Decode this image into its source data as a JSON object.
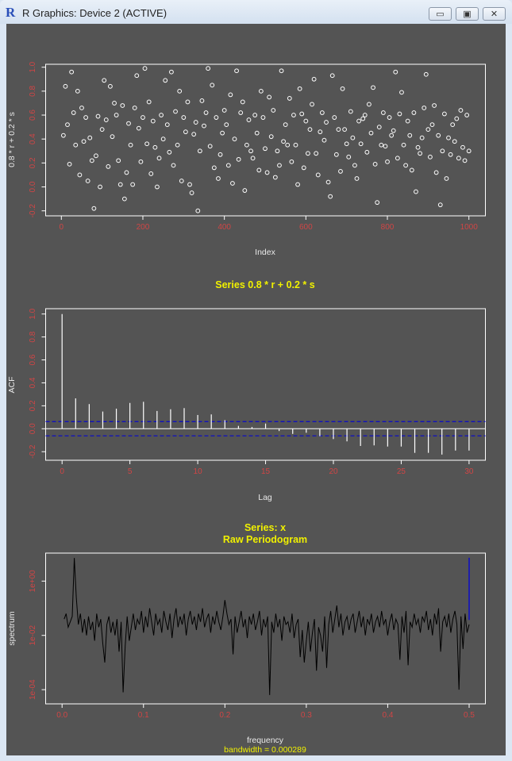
{
  "window": {
    "title": "R Graphics: Device 2 (ACTIVE)",
    "app_icon": "R",
    "minimize": "▭",
    "maximize": "▣",
    "close": "✕"
  },
  "colors": {
    "background": "#545454",
    "tick_labels": "#d04545",
    "titles": "#f0f000",
    "points": "#ffffff",
    "ci_lines": "#1010c0"
  },
  "chart_data": [
    {
      "type": "scatter",
      "title": "",
      "xlabel": "Index",
      "ylabel": "0.8 * r + 0.2 * s",
      "xlim": [
        0,
        1000
      ],
      "ylim": [
        -0.2,
        1.0
      ],
      "xticks": [
        "0",
        "200",
        "400",
        "600",
        "800",
        "1000"
      ],
      "yticks": [
        "-0.2",
        "0.0",
        "0.2",
        "0.4",
        "0.6",
        "0.8",
        "1.0"
      ],
      "x_step": 5,
      "y": [
        0.43,
        0.84,
        0.52,
        0.19,
        0.96,
        0.62,
        0.35,
        0.8,
        0.1,
        0.66,
        0.38,
        0.58,
        0.05,
        0.41,
        0.22,
        -0.18,
        0.26,
        0.59,
        0.0,
        0.48,
        0.89,
        0.56,
        0.17,
        0.84,
        0.42,
        0.7,
        0.6,
        0.22,
        0.02,
        0.68,
        -0.1,
        0.12,
        0.53,
        0.35,
        0.02,
        0.66,
        0.93,
        0.49,
        0.21,
        0.58,
        0.99,
        0.36,
        0.71,
        0.11,
        0.55,
        0.33,
        0.0,
        0.24,
        0.6,
        0.4,
        0.89,
        0.52,
        0.29,
        0.96,
        0.18,
        0.63,
        0.35,
        0.8,
        0.05,
        0.58,
        0.46,
        0.71,
        0.02,
        -0.05,
        0.44,
        0.54,
        -0.2,
        0.3,
        0.72,
        0.51,
        0.62,
        0.99,
        0.34,
        0.85,
        0.16,
        0.58,
        0.07,
        0.27,
        0.45,
        0.64,
        0.52,
        0.18,
        0.77,
        0.03,
        0.4,
        0.97,
        0.23,
        0.62,
        0.71,
        -0.03,
        0.35,
        0.56,
        0.3,
        0.24,
        0.6,
        0.45,
        0.14,
        0.8,
        0.58,
        0.32,
        0.12,
        0.75,
        0.42,
        0.64,
        0.08,
        0.3,
        0.18,
        0.97,
        0.38,
        0.52,
        0.35,
        0.74,
        0.21,
        0.6,
        0.35,
        0.02,
        0.82,
        0.61,
        0.16,
        0.55,
        0.28,
        0.48,
        0.69,
        0.9,
        0.28,
        0.1,
        0.46,
        0.62,
        0.39,
        0.54,
        0.04,
        -0.08,
        0.93,
        0.58,
        0.27,
        0.48,
        0.13,
        0.82,
        0.48,
        0.36,
        0.25,
        0.63,
        0.41,
        0.18,
        0.07,
        0.55,
        0.36,
        0.57,
        0.6,
        0.29,
        0.69,
        0.45,
        0.83,
        0.19,
        -0.13,
        0.5,
        0.35,
        0.62,
        0.34,
        0.21,
        0.58,
        0.43,
        0.47,
        0.96,
        0.24,
        0.61,
        0.79,
        0.35,
        0.18,
        0.55,
        0.43,
        0.14,
        0.62,
        -0.04,
        0.33,
        0.28,
        0.41,
        0.66,
        0.94,
        0.48,
        0.25,
        0.52,
        0.68,
        0.12,
        0.43,
        -0.15,
        0.3,
        0.61,
        0.07,
        0.41,
        0.27,
        0.52,
        0.38,
        0.57,
        0.24,
        0.64,
        0.33,
        0.22,
        0.6,
        0.3
      ]
    },
    {
      "type": "bar",
      "title": "Series  0.8 * r + 0.2 * s",
      "xlabel": "Lag",
      "ylabel": "ACF",
      "xlim": [
        0,
        30
      ],
      "ylim": [
        -0.25,
        1.0
      ],
      "xticks": [
        "0",
        "5",
        "10",
        "15",
        "20",
        "25",
        "30"
      ],
      "yticks": [
        "-0.2",
        "0.0",
        "0.2",
        "0.4",
        "0.6",
        "0.8",
        "1.0"
      ],
      "lags": [
        0,
        1,
        2,
        3,
        4,
        5,
        6,
        7,
        8,
        9,
        10,
        11,
        12,
        13,
        14,
        15,
        16,
        17,
        18,
        19,
        20,
        21,
        22,
        23,
        24,
        25,
        26,
        27,
        28,
        29,
        30
      ],
      "values": [
        1.0,
        0.265,
        0.215,
        0.15,
        0.175,
        0.225,
        0.235,
        0.155,
        0.17,
        0.18,
        0.12,
        0.125,
        0.075,
        0.025,
        0.015,
        0.045,
        -0.02,
        -0.045,
        -0.035,
        -0.065,
        -0.09,
        -0.11,
        -0.15,
        -0.145,
        -0.155,
        -0.155,
        -0.21,
        -0.21,
        -0.225,
        -0.19,
        -0.19
      ],
      "confidence_bound": 0.062
    },
    {
      "type": "line",
      "title": "Series: x",
      "subtitle": "Raw Periodogram",
      "xlabel": "frequency",
      "ylabel": "spectrum",
      "note": "bandwidth = 0.000289",
      "xlim": [
        0,
        0.5
      ],
      "yscale": "log",
      "xticks": [
        "0.0",
        "0.1",
        "0.2",
        "0.3",
        "0.4",
        "0.5"
      ],
      "yticks": [
        "1e-04",
        "1e-02",
        "1e+00"
      ],
      "freq_step": 0.0025,
      "log10_spectrum": [
        -1.4,
        -1.2,
        -1.7,
        -1.5,
        -1.3,
        0.85,
        -0.6,
        -1.6,
        -1.2,
        -1.9,
        -1.4,
        -2.0,
        -1.3,
        -1.8,
        -1.5,
        -2.2,
        -1.2,
        -1.7,
        -1.4,
        -2.3,
        -3.0,
        -1.6,
        -1.3,
        -1.9,
        -1.5,
        -2.0,
        -1.4,
        -2.6,
        -1.5,
        -4.1,
        -2.4,
        -1.3,
        -2.2,
        -1.7,
        -1.2,
        -1.8,
        -1.4,
        -1.6,
        -1.1,
        -1.9,
        -1.3,
        -1.7,
        -1.0,
        -1.5,
        -2.0,
        -1.2,
        -1.6,
        -1.4,
        -1.9,
        -1.1,
        -1.5,
        -1.8,
        -1.2,
        -2.1,
        -1.4,
        -1.0,
        -1.7,
        -1.3,
        -1.6,
        -1.2,
        -2.0,
        -1.4,
        -1.1,
        -1.6,
        -1.3,
        -1.8,
        -1.2,
        -1.5,
        -1.0,
        -1.7,
        -1.4,
        -1.2,
        -1.9,
        -1.3,
        -1.6,
        -1.1,
        -1.5,
        -1.8,
        -1.3,
        -0.7,
        -1.2,
        -1.6,
        -1.4,
        -2.7,
        -1.3,
        -1.9,
        -1.5,
        -1.1,
        -1.7,
        -1.4,
        -2.1,
        -1.3,
        -1.6,
        -1.2,
        -1.8,
        -1.5,
        -1.1,
        -2.0,
        -1.4,
        -1.7,
        -1.3,
        -4.2,
        -1.5,
        -1.9,
        -1.2,
        -1.7,
        -1.4,
        -2.2,
        -1.3,
        -1.6,
        -1.5,
        -1.9,
        -1.2,
        -2.1,
        -1.6,
        -1.4,
        -2.8,
        -1.8,
        -3.0,
        -2.2,
        -1.5,
        -2.6,
        -1.9,
        -1.4,
        -3.3,
        -1.7,
        -2.0,
        -2.6,
        -1.3,
        -3.2,
        -1.6,
        -1.1,
        -1.9,
        -1.4,
        -0.9,
        -1.7,
        -1.2,
        -2.0,
        -1.5,
        -1.3,
        -1.8,
        -1.4,
        -1.2,
        -1.9,
        -1.5,
        -1.1,
        -1.7,
        -1.3,
        -2.0,
        -1.4,
        -1.6,
        -1.2,
        -1.9,
        -1.5,
        -1.3,
        -1.7,
        -1.1,
        -1.6,
        -1.4,
        -2.0,
        -1.5,
        -1.2,
        -1.8,
        -1.4,
        -1.6,
        -2.9,
        -1.3,
        -1.9,
        -1.1,
        -3.1,
        -1.5,
        -1.7,
        -1.2,
        -1.6,
        -1.4,
        -1.9,
        -1.3,
        -1.5,
        -1.1,
        -1.8,
        -1.4,
        -2.0,
        -1.2,
        -1.6,
        -1.0,
        -2.6,
        -1.5,
        -1.3,
        -1.7,
        -1.2,
        -1.9,
        -1.4,
        -1.1,
        -1.6,
        -4.0,
        -1.3,
        -2.5,
        -1.2,
        -1.9,
        -1.6
      ],
      "ci_bar": {
        "frequency": 0.5,
        "log10_low": -1.43,
        "log10_high": 0.86
      }
    }
  ]
}
